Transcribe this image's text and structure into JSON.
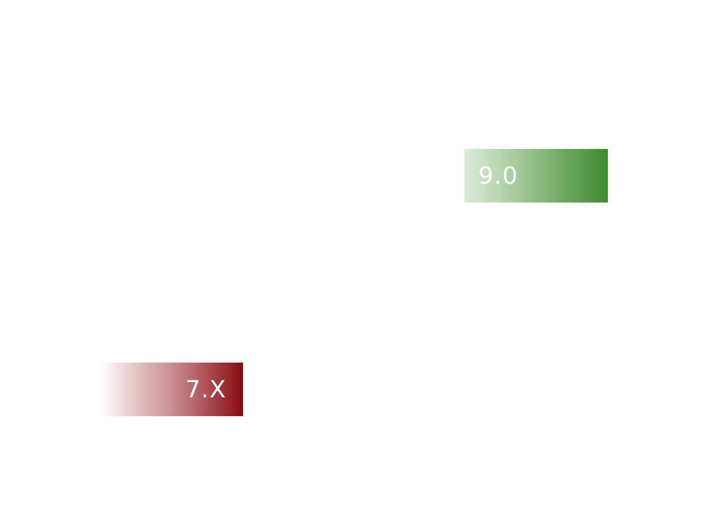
{
  "slide": {
    "boxes": [
      {
        "label": "9.0",
        "color_start": "#dcebd8",
        "color_end": "#3f8a31"
      },
      {
        "label": "7.X",
        "color_start": "#ffffff",
        "color_end": "#8a0a12"
      }
    ]
  }
}
